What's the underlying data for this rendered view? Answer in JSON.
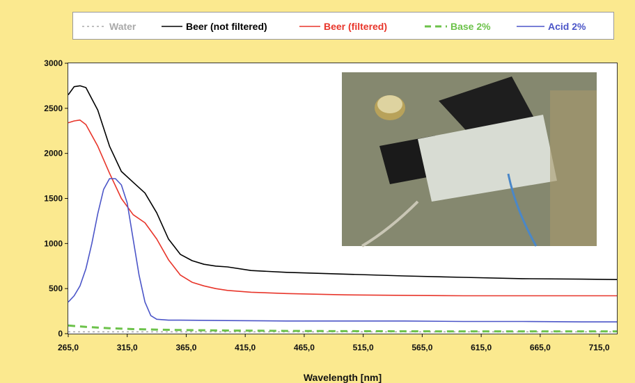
{
  "chart_data": {
    "type": "line",
    "xlabel": "Wavelength [nm]",
    "ylabel": "",
    "xlim": [
      265,
      730
    ],
    "ylim": [
      0,
      3000
    ],
    "xticks": [
      "265,0",
      "315,0",
      "365,0",
      "415,0",
      "465,0",
      "515,0",
      "565,0",
      "615,0",
      "665,0",
      "715,0"
    ],
    "xtick_values": [
      265,
      315,
      365,
      415,
      465,
      515,
      565,
      615,
      665,
      715
    ],
    "yticks": [
      "0",
      "500",
      "1000",
      "1500",
      "2000",
      "2500",
      "3000"
    ],
    "ytick_values": [
      0,
      500,
      1000,
      1500,
      2000,
      2500,
      3000
    ],
    "grid": false,
    "legend_position": "top",
    "inset_photo": "photo of optical sensor device with cable",
    "series": [
      {
        "name": "Water",
        "color": "#a9a9a9",
        "dash": "dot",
        "x": [
          265,
          300,
          350,
          400,
          500,
          600,
          730
        ],
        "y": [
          20,
          20,
          20,
          20,
          20,
          20,
          20
        ]
      },
      {
        "name": "Beer (not filtered)",
        "color": "#000000",
        "dash": "solid",
        "x": [
          265,
          270,
          275,
          280,
          290,
          300,
          310,
          320,
          330,
          340,
          350,
          360,
          370,
          380,
          390,
          400,
          420,
          450,
          500,
          550,
          600,
          650,
          700,
          730
        ],
        "y": [
          2650,
          2740,
          2750,
          2730,
          2480,
          2080,
          1800,
          1680,
          1560,
          1340,
          1050,
          880,
          810,
          770,
          750,
          740,
          700,
          680,
          660,
          640,
          625,
          610,
          605,
          600
        ]
      },
      {
        "name": "Beer (filtered)",
        "color": "#e8352a",
        "dash": "solid",
        "x": [
          265,
          270,
          275,
          280,
          290,
          300,
          310,
          320,
          330,
          340,
          350,
          360,
          370,
          380,
          390,
          400,
          420,
          450,
          500,
          550,
          600,
          650,
          700,
          730
        ],
        "y": [
          2340,
          2360,
          2370,
          2320,
          2080,
          1780,
          1500,
          1320,
          1230,
          1050,
          820,
          650,
          570,
          530,
          500,
          480,
          460,
          445,
          430,
          425,
          420,
          420,
          420,
          420
        ]
      },
      {
        "name": "Base 2%",
        "color": "#6cc24a",
        "dash": "dash",
        "x": [
          265,
          280,
          300,
          320,
          340,
          360,
          400,
          450,
          500,
          550,
          600,
          650,
          700,
          730
        ],
        "y": [
          90,
          75,
          60,
          50,
          45,
          40,
          35,
          30,
          28,
          26,
          25,
          25,
          25,
          25
        ]
      },
      {
        "name": "Acid 2%",
        "color": "#4b55c8",
        "dash": "solid",
        "x": [
          265,
          270,
          275,
          280,
          285,
          290,
          295,
          300,
          305,
          310,
          315,
          320,
          325,
          330,
          335,
          340,
          350,
          360,
          400,
          450,
          500,
          550,
          600,
          650,
          700,
          730
        ],
        "y": [
          350,
          420,
          530,
          720,
          1000,
          1330,
          1600,
          1720,
          1720,
          1650,
          1450,
          1050,
          650,
          350,
          200,
          160,
          150,
          150,
          145,
          140,
          140,
          140,
          135,
          135,
          130,
          130
        ]
      }
    ]
  }
}
